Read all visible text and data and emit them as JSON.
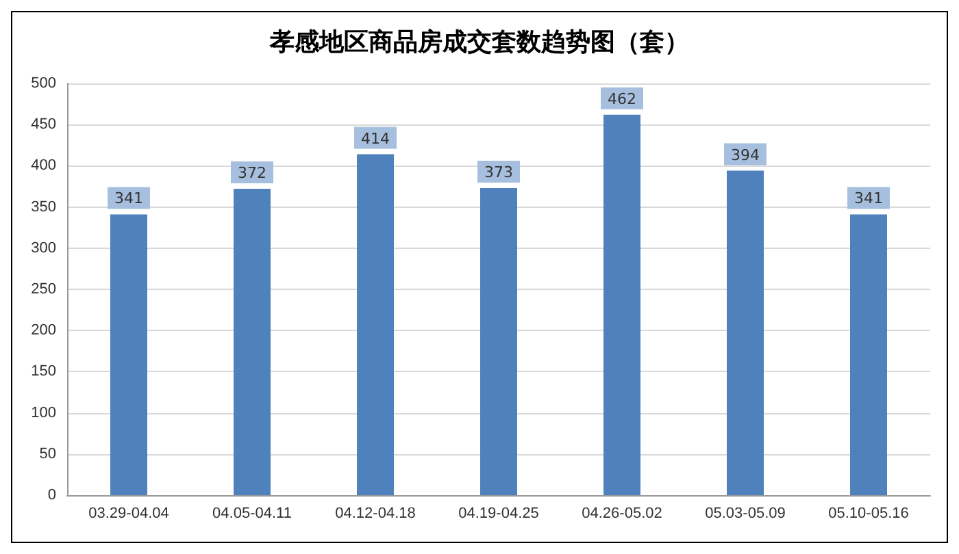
{
  "chart_data": {
    "type": "bar",
    "title": "孝感地区商品房成交套数趋势图（套）",
    "categories": [
      "03.29-04.04",
      "04.05-04.11",
      "04.12-04.18",
      "04.19-04.25",
      "04.26-05.02",
      "05.03-05.09",
      "05.10-05.16"
    ],
    "values": [
      341,
      372,
      414,
      373,
      462,
      394,
      341
    ],
    "color": "#4f81bd",
    "ylim": [
      0,
      500
    ],
    "yticks": [
      0,
      50,
      100,
      150,
      200,
      250,
      300,
      350,
      400,
      450,
      500
    ],
    "grid": "y",
    "data_labels": true
  }
}
